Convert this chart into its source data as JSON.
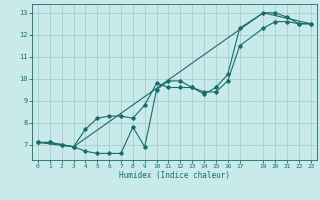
{
  "title": "",
  "xlabel": "Humidex (Indice chaleur)",
  "bg_color": "#c8eaea",
  "grid_color": "#a0c8c8",
  "line_color": "#1a6b6b",
  "xlim": [
    -0.5,
    23.5
  ],
  "ylim": [
    6.3,
    13.4
  ],
  "xticks": [
    0,
    1,
    2,
    3,
    4,
    5,
    6,
    7,
    8,
    9,
    10,
    11,
    12,
    13,
    14,
    15,
    16,
    17,
    19,
    20,
    21,
    22,
    23
  ],
  "yticks": [
    7,
    8,
    9,
    10,
    11,
    12,
    13
  ],
  "series1_x": [
    0,
    1,
    2,
    3,
    4,
    5,
    6,
    7,
    8,
    9,
    10,
    11,
    12,
    13,
    14,
    15,
    16,
    17,
    19,
    20,
    21,
    22,
    23
  ],
  "series1_y": [
    7.1,
    7.1,
    7.0,
    6.9,
    6.7,
    6.6,
    6.6,
    6.6,
    7.8,
    6.9,
    9.5,
    9.9,
    9.9,
    9.6,
    9.3,
    9.6,
    10.2,
    12.3,
    13.0,
    13.0,
    12.8,
    12.5,
    12.5
  ],
  "series2_x": [
    0,
    1,
    2,
    3,
    4,
    5,
    6,
    7,
    8,
    9,
    10,
    11,
    12,
    13,
    14,
    15,
    16,
    17,
    19,
    20,
    21,
    22,
    23
  ],
  "series2_y": [
    7.1,
    7.1,
    7.0,
    6.9,
    7.7,
    8.2,
    8.3,
    8.3,
    8.2,
    8.8,
    9.8,
    9.6,
    9.6,
    9.6,
    9.4,
    9.4,
    9.9,
    11.5,
    12.3,
    12.6,
    12.6,
    12.5,
    12.5
  ],
  "series3_x": [
    0,
    3,
    19,
    23
  ],
  "series3_y": [
    7.1,
    6.9,
    13.0,
    12.5
  ]
}
